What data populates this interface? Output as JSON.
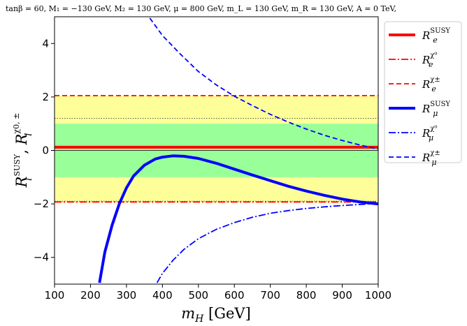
{
  "title": "tanβ = 60,  M₁ = −130 GeV,  M₂ = 130 GeV,  μ = 800 GeV,  m_L = 130 GeV,  m_R = 130 GeV,  A = 0 TeV,",
  "chart_data": {
    "type": "line",
    "xlabel": "m_H [GeV]",
    "ylabel": "R_l^SUSY , R_l^χ0,±",
    "xlim": [
      100,
      1000
    ],
    "ylim": [
      -5,
      5
    ],
    "xticks": [
      100,
      200,
      300,
      400,
      500,
      600,
      700,
      800,
      900,
      1000
    ],
    "yticks": [
      -4,
      -2,
      0,
      2,
      4
    ],
    "bands": [
      {
        "name": "outer",
        "range": [
          -1.95,
          2.05
        ],
        "color": "#ffff99"
      },
      {
        "name": "inner",
        "range": [
          -1.0,
          1.0
        ],
        "color": "#99ff99"
      }
    ],
    "reference_lines": [
      {
        "y": 1.2,
        "style": "dotted",
        "color": "#555555"
      },
      {
        "y": -1.9,
        "style": "dotted",
        "color": "#555555"
      },
      {
        "y": 0.0,
        "style": "solid",
        "color": "#333333"
      }
    ],
    "series": [
      {
        "name": "R_e^SUSY",
        "color": "#ff0000",
        "style": "solid",
        "width": 4,
        "x": [
          100,
          1000
        ],
        "y": [
          0.12,
          0.12
        ]
      },
      {
        "name": "R_e^χ0",
        "color": "#ff0000",
        "style": "dashdot",
        "width": 1.8,
        "x": [
          100,
          1000
        ],
        "y": [
          -1.93,
          -1.93
        ]
      },
      {
        "name": "R_e^χ±",
        "color": "#ff0000",
        "style": "dashed",
        "width": 1.8,
        "x": [
          100,
          1000
        ],
        "y": [
          2.05,
          2.05
        ]
      },
      {
        "name": "R_μ^SUSY",
        "color": "#0000ff",
        "style": "solid",
        "width": 4,
        "x": [
          225,
          240,
          260,
          280,
          300,
          320,
          350,
          380,
          400,
          430,
          460,
          500,
          550,
          600,
          650,
          700,
          750,
          800,
          850,
          900,
          950,
          1000
        ],
        "y": [
          -4.95,
          -3.8,
          -2.8,
          -2.0,
          -1.4,
          -0.95,
          -0.55,
          -0.32,
          -0.25,
          -0.2,
          -0.22,
          -0.3,
          -0.48,
          -0.7,
          -0.92,
          -1.13,
          -1.34,
          -1.52,
          -1.68,
          -1.82,
          -1.93,
          -2.0
        ]
      },
      {
        "name": "R_μ^χ0",
        "color": "#0000ff",
        "style": "dashdot",
        "width": 1.8,
        "x": [
          385,
          400,
          430,
          460,
          500,
          550,
          600,
          650,
          700,
          750,
          800,
          850,
          900,
          950,
          1000
        ],
        "y": [
          -4.95,
          -4.6,
          -4.1,
          -3.7,
          -3.3,
          -2.95,
          -2.7,
          -2.5,
          -2.35,
          -2.25,
          -2.17,
          -2.11,
          -2.06,
          -2.02,
          -1.98
        ]
      },
      {
        "name": "R_μ^χ±",
        "color": "#0000ff",
        "style": "dashed",
        "width": 1.8,
        "x": [
          365,
          400,
          450,
          500,
          550,
          600,
          650,
          700,
          750,
          800,
          850,
          900,
          950,
          1000
        ],
        "y": [
          4.95,
          4.3,
          3.6,
          2.95,
          2.45,
          2.03,
          1.68,
          1.35,
          1.06,
          0.8,
          0.57,
          0.37,
          0.2,
          0.05
        ]
      }
    ],
    "legend": {
      "placement": "upper-right-outside",
      "entries": [
        {
          "series": "R_e^SUSY",
          "main": "R",
          "sub": "e",
          "sup": "SUSY"
        },
        {
          "series": "R_e^χ0",
          "main": "R",
          "sub": "e",
          "sup": "χ⁰"
        },
        {
          "series": "R_e^χ±",
          "main": "R",
          "sub": "e",
          "sup": "χ±"
        },
        {
          "series": "R_μ^SUSY",
          "main": "R",
          "sub": "μ",
          "sup": "SUSY"
        },
        {
          "series": "R_μ^χ0",
          "main": "R",
          "sub": "μ",
          "sup": "χ⁰"
        },
        {
          "series": "R_μ^χ±",
          "main": "R",
          "sub": "μ",
          "sup": "χ±"
        }
      ]
    }
  }
}
